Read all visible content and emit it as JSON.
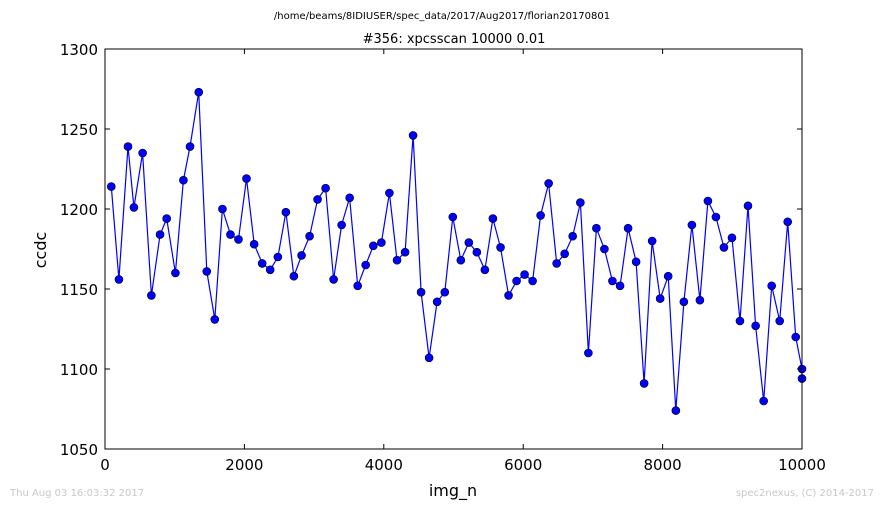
{
  "chart_data": {
    "type": "line",
    "suptitle": "/home/beams/8IDIUSER/spec_data/2017/Aug2017/florian20170801",
    "title": "#356: xpcsscan 10000 0.01",
    "xlabel": "img_n",
    "ylabel": "ccdc",
    "xlim": [
      0,
      10000
    ],
    "ylim": [
      1050,
      1300
    ],
    "xticks": [
      0,
      2000,
      4000,
      6000,
      8000,
      10000
    ],
    "yticks": [
      1050,
      1100,
      1150,
      1200,
      1250,
      1300
    ],
    "grid": false,
    "series": [
      {
        "color": "#0000ff",
        "marker": "circle",
        "x": [
          90,
          200,
          330,
          415,
          540,
          665,
          790,
          885,
          1010,
          1125,
          1220,
          1345,
          1460,
          1575,
          1685,
          1800,
          1915,
          2030,
          2140,
          2255,
          2370,
          2480,
          2595,
          2710,
          2820,
          2935,
          3050,
          3165,
          3280,
          3395,
          3510,
          3625,
          3740,
          3850,
          3965,
          4080,
          4190,
          4305,
          4420,
          4535,
          4650,
          4765,
          4875,
          4990,
          5105,
          5220,
          5335,
          5450,
          5565,
          5675,
          5790,
          5905,
          6020,
          6135,
          6250,
          6365,
          6480,
          6595,
          6710,
          6820,
          6935,
          7050,
          7165,
          7280,
          7390,
          7505,
          7620,
          7735,
          7850,
          7965,
          8080,
          8190,
          8305,
          8420,
          8535,
          8650,
          8765,
          8880,
          8995,
          9110,
          9225,
          9335,
          9450,
          9565,
          9680,
          9795,
          9910,
          10000,
          10000
        ],
        "y": [
          1214,
          1156,
          1239,
          1201,
          1235,
          1146,
          1184,
          1194,
          1160,
          1218,
          1239,
          1273,
          1161,
          1131,
          1200,
          1184,
          1181,
          1219,
          1178,
          1166,
          1162,
          1170,
          1198,
          1158,
          1171,
          1183,
          1206,
          1213,
          1156,
          1190,
          1207,
          1152,
          1165,
          1177,
          1179,
          1210,
          1168,
          1173,
          1246,
          1148,
          1107,
          1142,
          1148,
          1195,
          1168,
          1179,
          1173,
          1162,
          1194,
          1176,
          1146,
          1155,
          1159,
          1155,
          1196,
          1216,
          1166,
          1172,
          1183,
          1204,
          1110,
          1188,
          1175,
          1155,
          1152,
          1188,
          1167,
          1091,
          1180,
          1144,
          1158,
          1074,
          1142,
          1190,
          1143,
          1205,
          1195,
          1176,
          1182,
          1130,
          1202,
          1127,
          1080,
          1152,
          1130,
          1192,
          1120,
          1100,
          1094
        ]
      }
    ]
  },
  "footer": {
    "left": "Thu Aug 03 16:03:32 2017",
    "right": "spec2nexus, (C) 2014-2017"
  }
}
